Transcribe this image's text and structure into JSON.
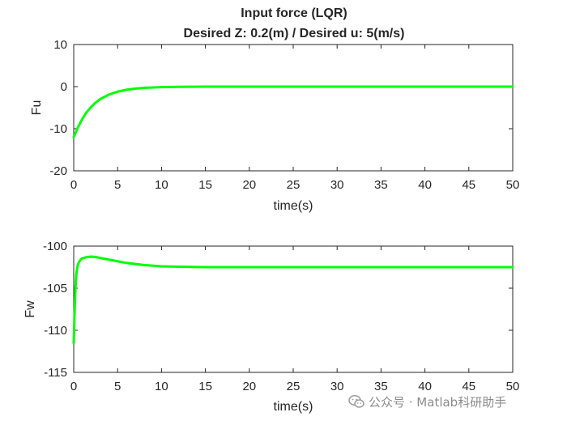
{
  "chart_data": [
    {
      "type": "line",
      "title": "Input force (LQR)",
      "subtitle": "Desired Z: 0.2(m) / Desired u: 5(m/s)",
      "xlabel": "time(s)",
      "ylabel": "Fu",
      "xlim": [
        0,
        50
      ],
      "ylim": [
        -20,
        10
      ],
      "xticks": [
        0,
        5,
        10,
        15,
        20,
        25,
        30,
        35,
        40,
        45,
        50
      ],
      "yticks": [
        -20,
        -10,
        0,
        10
      ],
      "grid": false,
      "line_color": "#00ff00",
      "series": [
        {
          "name": "Fu",
          "x": [
            0,
            0.5,
            1,
            1.5,
            2,
            2.5,
            3,
            4,
            5,
            6,
            7,
            8,
            10,
            12,
            15,
            20,
            30,
            40,
            50
          ],
          "y": [
            -12.0,
            -9.6,
            -7.6,
            -6.0,
            -4.8,
            -3.8,
            -3.0,
            -1.9,
            -1.2,
            -0.75,
            -0.47,
            -0.3,
            -0.12,
            -0.05,
            -0.01,
            0,
            0,
            0,
            0
          ]
        }
      ]
    },
    {
      "type": "line",
      "title": "",
      "xlabel": "time(s)",
      "ylabel": "Fw",
      "xlim": [
        0,
        50
      ],
      "ylim": [
        -115,
        -100
      ],
      "xticks": [
        0,
        5,
        10,
        15,
        20,
        25,
        30,
        35,
        40,
        45,
        50
      ],
      "yticks": [
        -115,
        -110,
        -105,
        -100
      ],
      "grid": false,
      "line_color": "#00ff00",
      "series": [
        {
          "name": "Fw",
          "x": [
            0,
            0.1,
            0.2,
            0.3,
            0.45,
            0.6,
            0.8,
            1.0,
            1.5,
            2,
            2.5,
            3,
            4,
            5,
            6,
            8,
            10,
            12,
            15,
            20,
            30,
            40,
            50
          ],
          "y": [
            -111.5,
            -108.0,
            -105.0,
            -103.3,
            -102.3,
            -101.9,
            -101.6,
            -101.45,
            -101.3,
            -101.25,
            -101.3,
            -101.4,
            -101.6,
            -101.8,
            -102.0,
            -102.25,
            -102.4,
            -102.45,
            -102.5,
            -102.5,
            -102.5,
            -102.5,
            -102.5
          ]
        }
      ]
    }
  ],
  "watermark": {
    "icon": "wechat-icon",
    "text": "公众号 · Matlab科研助手"
  }
}
